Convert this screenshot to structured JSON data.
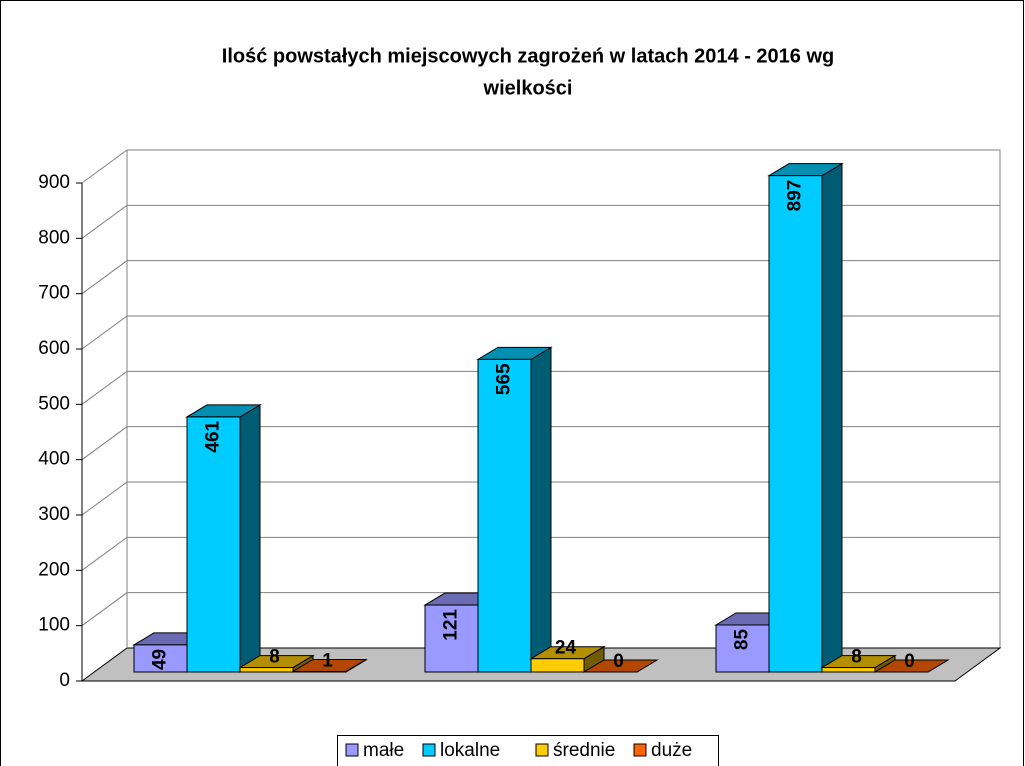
{
  "chart_data": {
    "type": "bar3d",
    "title": "Ilość powstałych miejscowych zagrożeń w latach 2014 - 2016 wg",
    "title_line2": "wielkości",
    "categories": [
      null,
      null,
      null
    ],
    "series": [
      {
        "name": "małe",
        "color": "#9999ff",
        "values": [
          49,
          121,
          85
        ]
      },
      {
        "name": "lokalne",
        "color": "#00ccff",
        "values": [
          461,
          565,
          897
        ]
      },
      {
        "name": "średnie",
        "color": "#ffcc00",
        "values": [
          8,
          24,
          8
        ]
      },
      {
        "name": "duże",
        "color": "#ff6600",
        "values": [
          1,
          0,
          0
        ]
      }
    ],
    "ylim": [
      0,
      900
    ],
    "yticks": [
      0,
      100,
      200,
      300,
      400,
      500,
      600,
      700,
      800,
      900
    ],
    "grid": true,
    "legend": "bottom"
  }
}
